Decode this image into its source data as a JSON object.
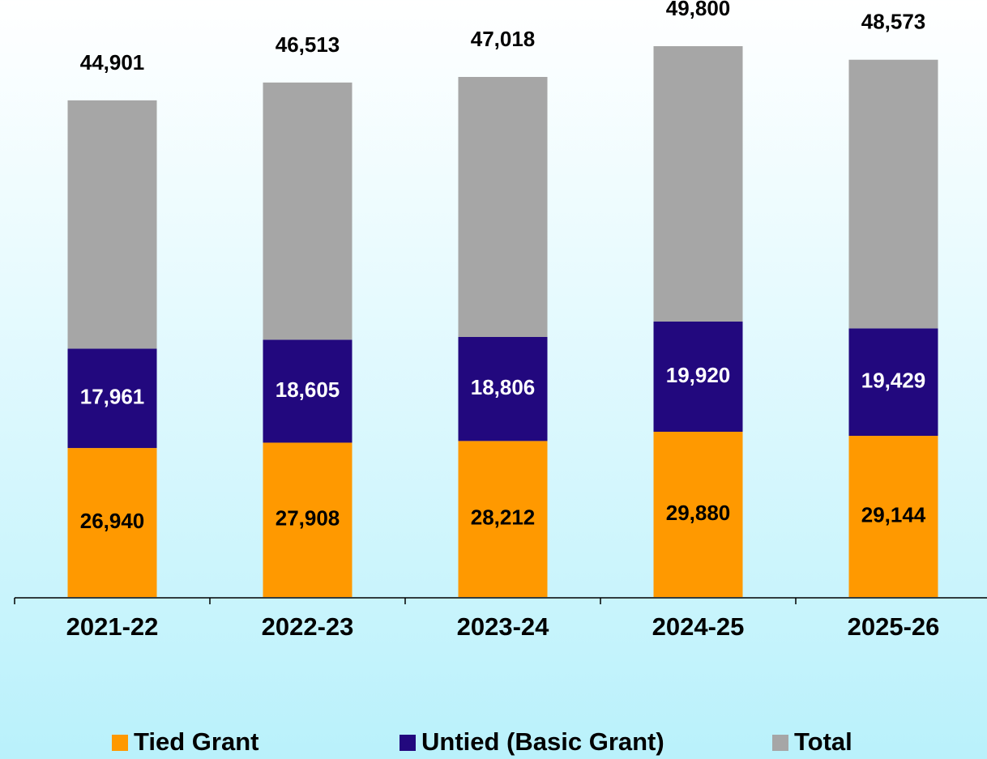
{
  "chart_data": {
    "type": "stacked_bar",
    "categories": [
      "2021-22",
      "2022-23",
      "2023-24",
      "2024-25",
      "2025-26"
    ],
    "series": [
      {
        "name": "Tied Grant",
        "color": "#ff9900",
        "values": [
          26940,
          27908,
          28212,
          29880,
          29144
        ],
        "value_labels": [
          "26,940",
          "27,908",
          "28,212",
          "29,880",
          "29,144"
        ],
        "label_color": "#000000"
      },
      {
        "name": "Untied (Basic Grant)",
        "color": "#22087e",
        "values": [
          17961,
          18605,
          18806,
          19920,
          19429
        ],
        "value_labels": [
          "17,961",
          "18,605",
          "18,806",
          "19,920",
          "19,429"
        ],
        "label_color": "#ffffff"
      },
      {
        "name": "Total",
        "color": "#a6a6a6",
        "values": [
          44901,
          46513,
          47018,
          49800,
          48573
        ],
        "value_labels": [
          "44,901",
          "46,513",
          "47,018",
          "49,800",
          "48,573"
        ],
        "label_color": "#000000"
      }
    ]
  }
}
